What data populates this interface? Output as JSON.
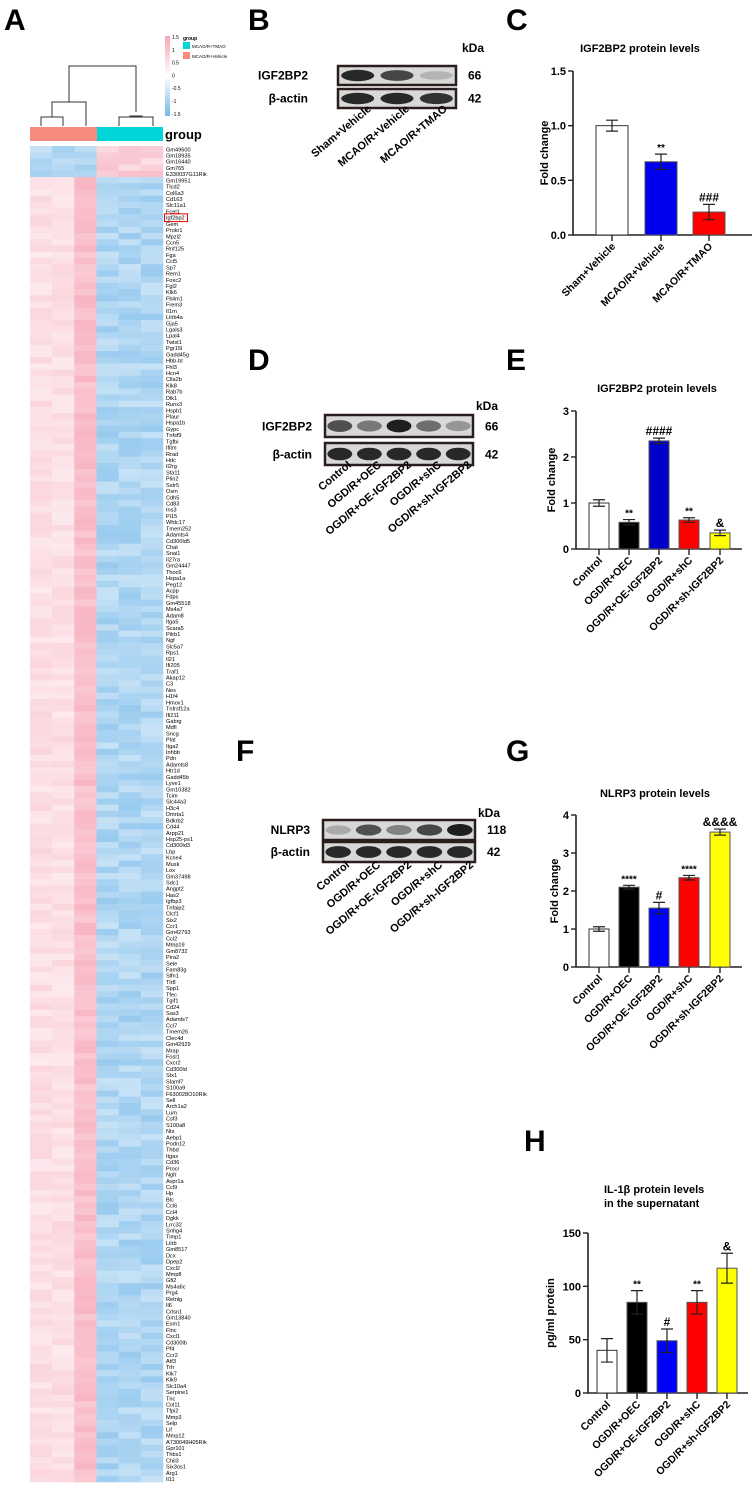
{
  "panels": {
    "A": "A",
    "B": "B",
    "C": "C",
    "D": "D",
    "E": "E",
    "F": "F",
    "G": "G",
    "H": "H"
  },
  "heatmap": {
    "legend_title": "group",
    "scale_ticks": [
      "1.5",
      "1",
      "0.5",
      "0",
      "-0.5",
      "-1",
      "-1.5"
    ],
    "groups": [
      {
        "label": "MCAO/R+TMAO",
        "color": "#00d5d9"
      },
      {
        "label": "MCAO/R+Vehicle",
        "color": "#f88a7e"
      }
    ],
    "group_row_label": "group",
    "highlight_gene": "Igf2bp2",
    "up_in_tmao_count": 5,
    "genes": [
      "Gm49600",
      "Gm18935",
      "Gm16440",
      "Gm765",
      "E330037G11Rik",
      "Gm19951",
      "Tlcd2",
      "Col6a3",
      "Cd163",
      "Slc11a1",
      "Fcel1",
      "Igf2bp2",
      "Gem",
      "Prokr1",
      "Mpzl2",
      "Ccn5",
      "Rnf125",
      "Fga",
      "Ccl5",
      "Sp7",
      "Rem1",
      "Foxc2",
      "Fgl2",
      "Klk6",
      "Fblim1",
      "Frem3",
      "Il1rn",
      "Lilrb4a",
      "Gja5",
      "Lgals3",
      "Lpal4",
      "Twist1",
      "Pgr15l",
      "Gadd45g",
      "Hbb-bt",
      "Fhl3",
      "Hcn4",
      "Clla2b",
      "Klk8",
      "Rab7b",
      "Dlk1",
      "Runx3",
      "Hspb1",
      "Plaur",
      "Hspa1b",
      "Gypc",
      "Tnfsf9",
      "Tgfbi",
      "Ifitm",
      "Rrad",
      "Hdc",
      "Il2rg",
      "Sfa11",
      "Plin2",
      "Sstr5",
      "Osm",
      "Cdh5",
      "Cd83",
      "Ins3",
      "Pi15",
      "Wfdc17",
      "Tmem252",
      "Adamts4",
      "Cd300ld5",
      "Chat",
      "Snai1",
      "Il27ra",
      "Gm24447",
      "Thoc6",
      "Hspa1a",
      "Peg12",
      "Acpp",
      "Fdps",
      "Gm45518",
      "Ms4a7",
      "Adam8",
      "Itga5",
      "Scara5",
      "Pilrb1",
      "Ngf",
      "Slc5a7",
      "Rps1",
      "Il21",
      "Ifi205",
      "Traf1",
      "Akap12",
      "C3",
      "Nes",
      "H1f4",
      "Hmox1",
      "Tnfrsf12a",
      "Ifi211",
      "Gabrg",
      "Mdfi",
      "Sncg",
      "Plat",
      "Itga2",
      "Inhbb",
      "Pdn",
      "Adamts8",
      "Htr1d",
      "Gadd45b",
      "Lyve1",
      "Gm10382",
      "Tcim",
      "Slc44a3",
      "H3c4",
      "Dmrta1",
      "Bdkrb2",
      "Cd44",
      "Arpp21",
      "Hsp25-ps1",
      "Cd300ld3",
      "Lbp",
      "Kcne4",
      "Musk",
      "Lox",
      "Gm37498",
      "Sdc1",
      "Angpt2",
      "Has2",
      "Igfbp3",
      "Tnfaip2",
      "Clcf1",
      "Six2",
      "Ccr1",
      "Gm42793",
      "Ccl2",
      "Mmp19",
      "Gm8732",
      "Pira2",
      "Sele",
      "Fam83g",
      "Slfn1",
      "Tlr8",
      "Spp1",
      "Tfec",
      "Tgif1",
      "Cd24",
      "Sas3",
      "Adamts7",
      "Ccl7",
      "Tmem26",
      "Clec4d",
      "Gm42929",
      "Mrap",
      "Fosl1",
      "Cxcr2",
      "Cd300ld",
      "Stx1",
      "Slamf7",
      "S100a9",
      "F630028O10Rik",
      "Sell",
      "Arch1a2",
      "Lum",
      "Csf3",
      "S100a8",
      "Nts",
      "Aebp1",
      "Podn12",
      "Thbd",
      "Itgax",
      "Cd36",
      "Procr",
      "Ngfr",
      "Avpr1a",
      "Ccl9",
      "Hp",
      "Btc",
      "Ccl6",
      "Ccl4",
      "Dgkk",
      "Lrrc32",
      "Snhg4",
      "Timp1",
      "Lilrb",
      "Gm8517",
      "Dcx",
      "Dpep2",
      "Cxcl2",
      "Mmp8",
      "Gfi2",
      "Ms4a6c",
      "Prg4",
      "Retnlg",
      "Il6",
      "Crlsn1",
      "Gm13840",
      "Esm1",
      "Flnc",
      "Cxcl1",
      "Cd300lb",
      "Pf4",
      "Ccr2",
      "Atf3",
      "Trh",
      "Klk7",
      "Klk9",
      "Slc10a4",
      "Serpine1",
      "Tnc",
      "Col11",
      "Tfpi2",
      "Mmp3",
      "Selp",
      "Lif",
      "Mmp12",
      "A730049H05Rik",
      "Gpr101",
      "Thbs1",
      "Chil3",
      "Six3os1",
      "Arg1",
      "Il11"
    ]
  },
  "blots": [
    {
      "id": "B",
      "kda_label": "kDa",
      "rows": [
        {
          "protein": "IGF2BP2",
          "kda": "66",
          "band_intensity": [
            0.95,
            0.8,
            0.25
          ]
        },
        {
          "protein": "β-actin",
          "kda": "42",
          "band_intensity": [
            0.95,
            0.95,
            0.9
          ]
        }
      ],
      "lanes": [
        "Sham+Vehicle",
        "MCAO/R+Vehicle",
        "MCAO/R+TMAO"
      ]
    },
    {
      "id": "D",
      "kda_label": "kDa",
      "rows": [
        {
          "protein": "IGF2BP2",
          "kda": "66",
          "band_intensity": [
            0.75,
            0.55,
            1.0,
            0.6,
            0.4
          ]
        },
        {
          "protein": "β-actin",
          "kda": "42",
          "band_intensity": [
            0.95,
            0.95,
            0.95,
            0.95,
            0.95
          ]
        }
      ],
      "lanes": [
        "Control",
        "OGD/R+OEC",
        "OGD/R+OE-IGF2BP2",
        "OGD/R+shC",
        "OGD/R+sh-IGF2BP2"
      ]
    },
    {
      "id": "F",
      "kda_label": "kDa",
      "rows": [
        {
          "protein": "NLRP3",
          "kda": "118",
          "band_intensity": [
            0.3,
            0.75,
            0.5,
            0.8,
            1.0
          ]
        },
        {
          "protein": "β-actin",
          "kda": "42",
          "band_intensity": [
            0.95,
            0.95,
            0.95,
            0.95,
            0.95
          ]
        }
      ],
      "lanes": [
        "Control",
        "OGD/R+OEC",
        "OGD/R+OE-IGF2BP2",
        "OGD/R+shC",
        "OGD/R+sh-IGF2BP2"
      ]
    }
  ],
  "chart_data": [
    {
      "id": "C",
      "type": "bar",
      "title": [
        "IGF2BP2 protein levels"
      ],
      "ylabel": "Fold change",
      "ylim": [
        0,
        1.5
      ],
      "yticks": [
        "0.0",
        "0.5",
        "1.0",
        "1.5"
      ],
      "ytick_values": [
        0,
        0.5,
        1.0,
        1.5
      ],
      "categories": [
        "Sham+Vehicle",
        "MCAO/R+Vehicle",
        "MCAO/R+TMAO"
      ],
      "values": [
        1.0,
        0.67,
        0.21
      ],
      "errors": [
        0.05,
        0.07,
        0.07
      ],
      "annotations": [
        "",
        "**",
        "###"
      ],
      "colors": [
        "#ffffff",
        "#0000ee",
        "#ff0000"
      ]
    },
    {
      "id": "E",
      "type": "bar",
      "title": [
        "IGF2BP2 protein levels"
      ],
      "ylabel": "Fold change",
      "ylim": [
        0,
        3
      ],
      "yticks": [
        "0",
        "1",
        "2",
        "3"
      ],
      "ytick_values": [
        0,
        1,
        2,
        3
      ],
      "categories": [
        "Control",
        "OGD/R+OEC",
        "OGD/R+OE-IGF2BP2",
        "OGD/R+shC",
        "OGD/R+sh-IGF2BP2"
      ],
      "values": [
        1.0,
        0.58,
        2.35,
        0.63,
        0.35
      ],
      "errors": [
        0.07,
        0.06,
        0.06,
        0.05,
        0.06
      ],
      "annotations": [
        "",
        "**",
        "####",
        "**",
        "&"
      ],
      "colors": [
        "#ffffff",
        "#000000",
        "#0000cc",
        "#ff0000",
        "#ffff00"
      ]
    },
    {
      "id": "G",
      "type": "bar",
      "title": [
        "NLRP3 protein levels"
      ],
      "ylabel": "Fold change",
      "ylim": [
        0,
        4
      ],
      "yticks": [
        "0",
        "1",
        "2",
        "3",
        "4"
      ],
      "ytick_values": [
        0,
        1,
        2,
        3,
        4
      ],
      "categories": [
        "Control",
        "OGD/R+OEC",
        "OGD/R+OE-IGF2BP2",
        "OGD/R+shC",
        "OGD/R+sh-IGF2BP2"
      ],
      "values": [
        1.0,
        2.1,
        1.55,
        2.35,
        3.55
      ],
      "errors": [
        0.06,
        0.05,
        0.15,
        0.06,
        0.08
      ],
      "annotations": [
        "",
        "****",
        "#",
        "****",
        "&&&&"
      ],
      "colors": [
        "#ffffff",
        "#000000",
        "#0000ff",
        "#ff0000",
        "#ffff00"
      ]
    },
    {
      "id": "H",
      "type": "bar",
      "title": [
        "IL-1β protein levels",
        "in the supernatant"
      ],
      "ylabel": "pg/ml protein",
      "ylim": [
        0,
        150
      ],
      "yticks": [
        "0",
        "50",
        "100",
        "150"
      ],
      "ytick_values": [
        0,
        50,
        100,
        150
      ],
      "categories": [
        "Control",
        "OGD/R+OEC",
        "OGD/R+OE-IGF2BP2",
        "OGD/R+shC",
        "OGD/R+sh-IGF2BP2"
      ],
      "values": [
        40,
        85,
        49,
        85,
        117
      ],
      "errors": [
        11,
        11,
        11,
        11,
        14
      ],
      "annotations": [
        "",
        "**",
        "#",
        "**",
        "&"
      ],
      "colors": [
        "#ffffff",
        "#000000",
        "#0000ff",
        "#ff0000",
        "#ffff00"
      ]
    }
  ]
}
